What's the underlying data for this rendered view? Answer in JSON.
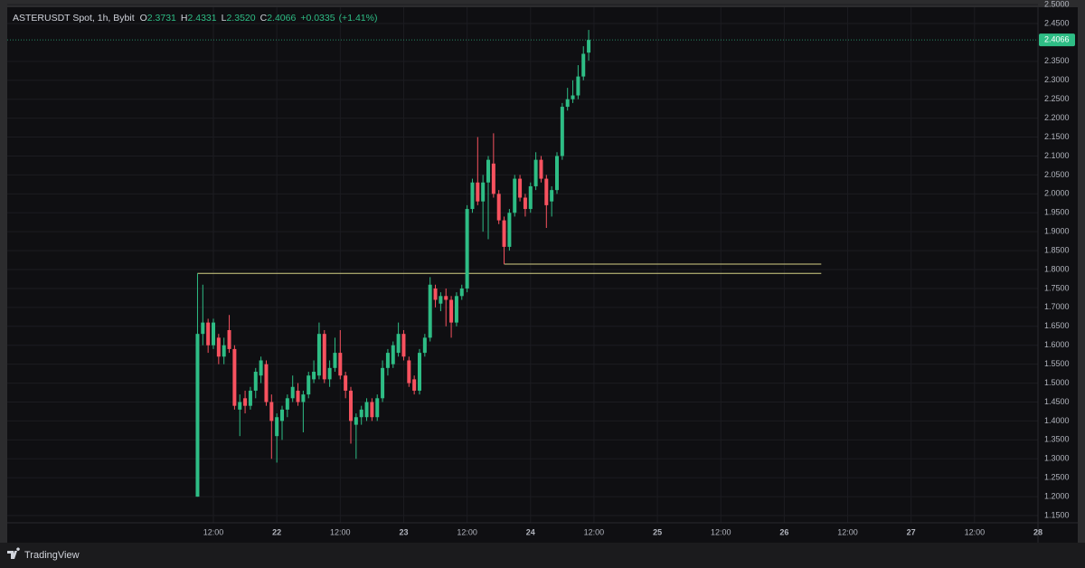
{
  "chart_data": {
    "type": "candlestick",
    "title": "ASTERUSDT Spot, 1h, Bybit",
    "legend_labels": [
      "O",
      "H",
      "L",
      "C"
    ],
    "legend_values": [
      "2.3731",
      "2.4331",
      "2.3520",
      "2.4066"
    ],
    "change": "+0.0335",
    "change_pct": "(+1.41%)",
    "last_price_label": "2.4066",
    "brand": "TradingView",
    "up_color": "#2ebd85",
    "down_color": "#f7525f",
    "drawing_color": "#d4cf85",
    "grid": true,
    "x": [
      9,
      10,
      11,
      12,
      13,
      14,
      15,
      16,
      17,
      18,
      19,
      20,
      21,
      22,
      23,
      24,
      25,
      26,
      27,
      28,
      29,
      30,
      31,
      32,
      33,
      34,
      35,
      36,
      37,
      38,
      39,
      40,
      41,
      42,
      43,
      44,
      45,
      46,
      47,
      48,
      49,
      50,
      51,
      52,
      53,
      54,
      55,
      56,
      57,
      58,
      59,
      60,
      61,
      62,
      63,
      64,
      65,
      66,
      67,
      68,
      69,
      70,
      71,
      72,
      73,
      74,
      75,
      76,
      77,
      78,
      79,
      80,
      81,
      82,
      83
    ],
    "open": [
      1.2,
      1.63,
      1.66,
      1.6,
      1.62,
      1.57,
      1.64,
      1.59,
      1.43,
      1.46,
      1.44,
      1.48,
      1.52,
      1.55,
      1.45,
      1.36,
      1.4,
      1.43,
      1.46,
      1.48,
      1.45,
      1.47,
      1.51,
      1.52,
      1.63,
      1.51,
      1.54,
      1.58,
      1.52,
      1.48,
      1.39,
      1.41,
      1.41,
      1.45,
      1.41,
      1.46,
      1.54,
      1.55,
      1.58,
      1.63,
      1.56,
      1.51,
      1.48,
      1.58,
      1.62,
      1.75,
      1.71,
      1.73,
      1.72,
      1.66,
      1.73,
      1.75,
      1.96,
      2.03,
      1.98,
      2.03,
      2.08,
      2.0,
      1.93,
      1.86,
      1.95,
      2.04,
      1.99,
      1.96,
      2.02,
      2.09,
      2.04,
      1.98,
      2.01,
      2.1,
      2.23,
      2.25,
      2.26,
      2.31,
      2.3731
    ],
    "high": [
      1.79,
      1.76,
      1.67,
      1.67,
      1.63,
      1.62,
      1.68,
      1.6,
      1.47,
      1.48,
      1.49,
      1.54,
      1.57,
      1.56,
      1.47,
      1.42,
      1.44,
      1.47,
      1.52,
      1.5,
      1.48,
      1.53,
      1.56,
      1.66,
      1.64,
      1.56,
      1.62,
      1.64,
      1.53,
      1.49,
      1.42,
      1.44,
      1.46,
      1.46,
      1.47,
      1.56,
      1.59,
      1.61,
      1.66,
      1.64,
      1.57,
      1.52,
      1.59,
      1.63,
      1.78,
      1.76,
      1.74,
      1.75,
      1.73,
      1.74,
      1.76,
      1.97,
      2.04,
      2.15,
      2.05,
      2.1,
      2.16,
      2.01,
      1.94,
      1.96,
      2.05,
      2.05,
      2.0,
      2.03,
      2.11,
      2.1,
      2.05,
      2.02,
      2.11,
      2.24,
      2.28,
      2.3,
      2.34,
      2.39,
      2.4331
    ],
    "low": [
      1.2,
      1.6,
      1.58,
      1.59,
      1.55,
      1.55,
      1.58,
      1.43,
      1.36,
      1.42,
      1.43,
      1.46,
      1.5,
      1.44,
      1.3,
      1.29,
      1.35,
      1.41,
      1.45,
      1.44,
      1.37,
      1.46,
      1.5,
      1.51,
      1.5,
      1.49,
      1.53,
      1.51,
      1.46,
      1.34,
      1.3,
      1.39,
      1.4,
      1.4,
      1.4,
      1.45,
      1.52,
      1.54,
      1.57,
      1.56,
      1.49,
      1.47,
      1.47,
      1.57,
      1.61,
      1.7,
      1.69,
      1.65,
      1.62,
      1.65,
      1.72,
      1.74,
      1.95,
      1.97,
      1.9,
      1.88,
      1.99,
      1.92,
      1.8143,
      1.85,
      1.94,
      1.98,
      1.94,
      1.95,
      2.01,
      2.03,
      1.91,
      1.94,
      2.0,
      2.09,
      2.22,
      2.24,
      2.25,
      2.3,
      2.352
    ],
    "close": [
      1.63,
      1.66,
      1.6,
      1.66,
      1.57,
      1.6,
      1.59,
      1.44,
      1.45,
      1.44,
      1.48,
      1.53,
      1.56,
      1.45,
      1.4,
      1.41,
      1.43,
      1.46,
      1.49,
      1.45,
      1.47,
      1.52,
      1.53,
      1.63,
      1.51,
      1.54,
      1.58,
      1.52,
      1.48,
      1.4,
      1.41,
      1.43,
      1.45,
      1.41,
      1.46,
      1.54,
      1.58,
      1.6,
      1.63,
      1.57,
      1.5,
      1.48,
      1.58,
      1.62,
      1.76,
      1.72,
      1.73,
      1.72,
      1.66,
      1.73,
      1.75,
      1.96,
      2.03,
      1.98,
      2.03,
      2.09,
      2.0,
      1.93,
      1.86,
      1.95,
      2.04,
      1.99,
      1.96,
      2.02,
      2.09,
      2.04,
      1.97,
      2.01,
      2.1,
      2.23,
      2.25,
      2.26,
      2.31,
      2.37,
      2.4066
    ],
    "drawings": [
      {
        "y": 1.79,
        "x": [
          9,
          127
        ]
      },
      {
        "y": 1.8143,
        "x": [
          67,
          127
        ]
      }
    ],
    "xlim": [
      -27,
      168
    ],
    "xticks": [
      {
        "value": 12,
        "label": "12:00"
      },
      {
        "value": 24,
        "label": "22"
      },
      {
        "value": 36,
        "label": "12:00"
      },
      {
        "value": 48,
        "label": "23"
      },
      {
        "value": 60,
        "label": "12:00"
      },
      {
        "value": 72,
        "label": "24"
      },
      {
        "value": 84,
        "label": "12:00"
      },
      {
        "value": 96,
        "label": "25"
      },
      {
        "value": 108,
        "label": "12:00"
      },
      {
        "value": 120,
        "label": "26"
      },
      {
        "value": 132,
        "label": "12:00"
      },
      {
        "value": 144,
        "label": "27"
      },
      {
        "value": 156,
        "label": "12:00"
      },
      {
        "value": 168,
        "label": "28"
      }
    ],
    "ylim": [
      1.131,
      2.493
    ],
    "yticks": [
      {
        "value": 1.15,
        "label": "1.1500"
      },
      {
        "value": 1.2,
        "label": "1.2000"
      },
      {
        "value": 1.25,
        "label": "1.2500"
      },
      {
        "value": 1.3,
        "label": "1.3000"
      },
      {
        "value": 1.35,
        "label": "1.3500"
      },
      {
        "value": 1.4,
        "label": "1.4000"
      },
      {
        "value": 1.45,
        "label": "1.4500"
      },
      {
        "value": 1.5,
        "label": "1.5000"
      },
      {
        "value": 1.55,
        "label": "1.5500"
      },
      {
        "value": 1.6,
        "label": "1.6000"
      },
      {
        "value": 1.65,
        "label": "1.6500"
      },
      {
        "value": 1.7,
        "label": "1.7000"
      },
      {
        "value": 1.75,
        "label": "1.7500"
      },
      {
        "value": 1.8,
        "label": "1.8000"
      },
      {
        "value": 1.85,
        "label": "1.8500"
      },
      {
        "value": 1.9,
        "label": "1.9000"
      },
      {
        "value": 1.95,
        "label": "1.9500"
      },
      {
        "value": 2,
        "label": "2.0000"
      },
      {
        "value": 2.05,
        "label": "2.0500"
      },
      {
        "value": 2.1,
        "label": "2.1000"
      },
      {
        "value": 2.15,
        "label": "2.1500"
      },
      {
        "value": 2.2,
        "label": "2.2000"
      },
      {
        "value": 2.25,
        "label": "2.2500"
      },
      {
        "value": 2.3,
        "label": "2.3000"
      },
      {
        "value": 2.35,
        "label": "2.3500"
      },
      {
        "value": 2.45,
        "label": "2.4500"
      },
      {
        "value": 2.5,
        "label": "2.5000"
      }
    ]
  }
}
